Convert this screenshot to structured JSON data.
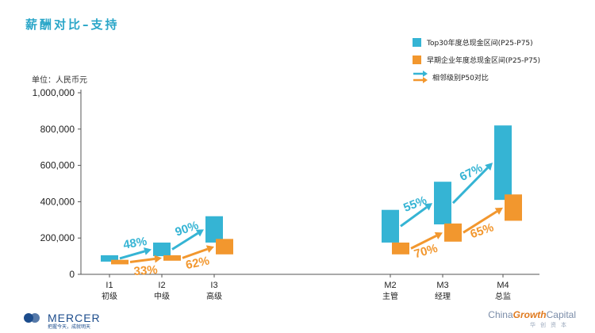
{
  "title": "薪酬对比–支持",
  "unit_label": "单位：人民币元",
  "legend": {
    "top30": "Top30年度总现金区间(P25-P75)",
    "early": "早期企业年度总现金区间(P25-P75)",
    "arrow": "相邻级别P50对比"
  },
  "colors": {
    "top30": "#35b4d4",
    "early": "#f2972e",
    "axis": "#555555"
  },
  "chart_data": {
    "type": "floating-bar",
    "y_ticks": [
      "0",
      "200,000",
      "400,000",
      "600,000",
      "800,000",
      "1,000,000"
    ],
    "ylim": [
      0,
      1000000
    ],
    "categories": [
      {
        "code": "I1",
        "name": "初级"
      },
      {
        "code": "I2",
        "name": "中级"
      },
      {
        "code": "I3",
        "name": "高级"
      },
      {
        "code": "M2",
        "name": "主管"
      },
      {
        "code": "M3",
        "name": "经理"
      },
      {
        "code": "M4",
        "name": "总监"
      }
    ],
    "series": [
      {
        "name": "Top30年度总现金区间(P25-P75)",
        "key": "top30",
        "ranges": [
          [
            70000,
            105000
          ],
          [
            100000,
            175000
          ],
          [
            175000,
            320000
          ],
          [
            175000,
            355000
          ],
          [
            275000,
            510000
          ],
          [
            410000,
            820000
          ]
        ]
      },
      {
        "name": "早期企业年度总现金区间(P25-P75)",
        "key": "early",
        "ranges": [
          [
            55000,
            80000
          ],
          [
            75000,
            105000
          ],
          [
            110000,
            195000
          ],
          [
            110000,
            175000
          ],
          [
            180000,
            280000
          ],
          [
            295000,
            440000
          ]
        ]
      }
    ],
    "arrows": [
      {
        "series": "top30",
        "from": 0,
        "to": 1,
        "label": "48%"
      },
      {
        "series": "top30",
        "from": 1,
        "to": 2,
        "label": "90%"
      },
      {
        "series": "early",
        "from": 0,
        "to": 1,
        "label": "33%"
      },
      {
        "series": "early",
        "from": 1,
        "to": 2,
        "label": "62%"
      },
      {
        "series": "top30",
        "from": 3,
        "to": 4,
        "label": "55%"
      },
      {
        "series": "top30",
        "from": 4,
        "to": 5,
        "label": "67%"
      },
      {
        "series": "early",
        "from": 3,
        "to": 4,
        "label": "70%"
      },
      {
        "series": "early",
        "from": 4,
        "to": 5,
        "label": "65%"
      }
    ]
  },
  "footer": {
    "mercer": "MERCER",
    "mercer_tagline": "把握今天，成就明天",
    "cgc_prefix": "China",
    "cgc_mid": "Growth",
    "cgc_suffix": "Capital",
    "cgc_sub": "华创资本"
  }
}
